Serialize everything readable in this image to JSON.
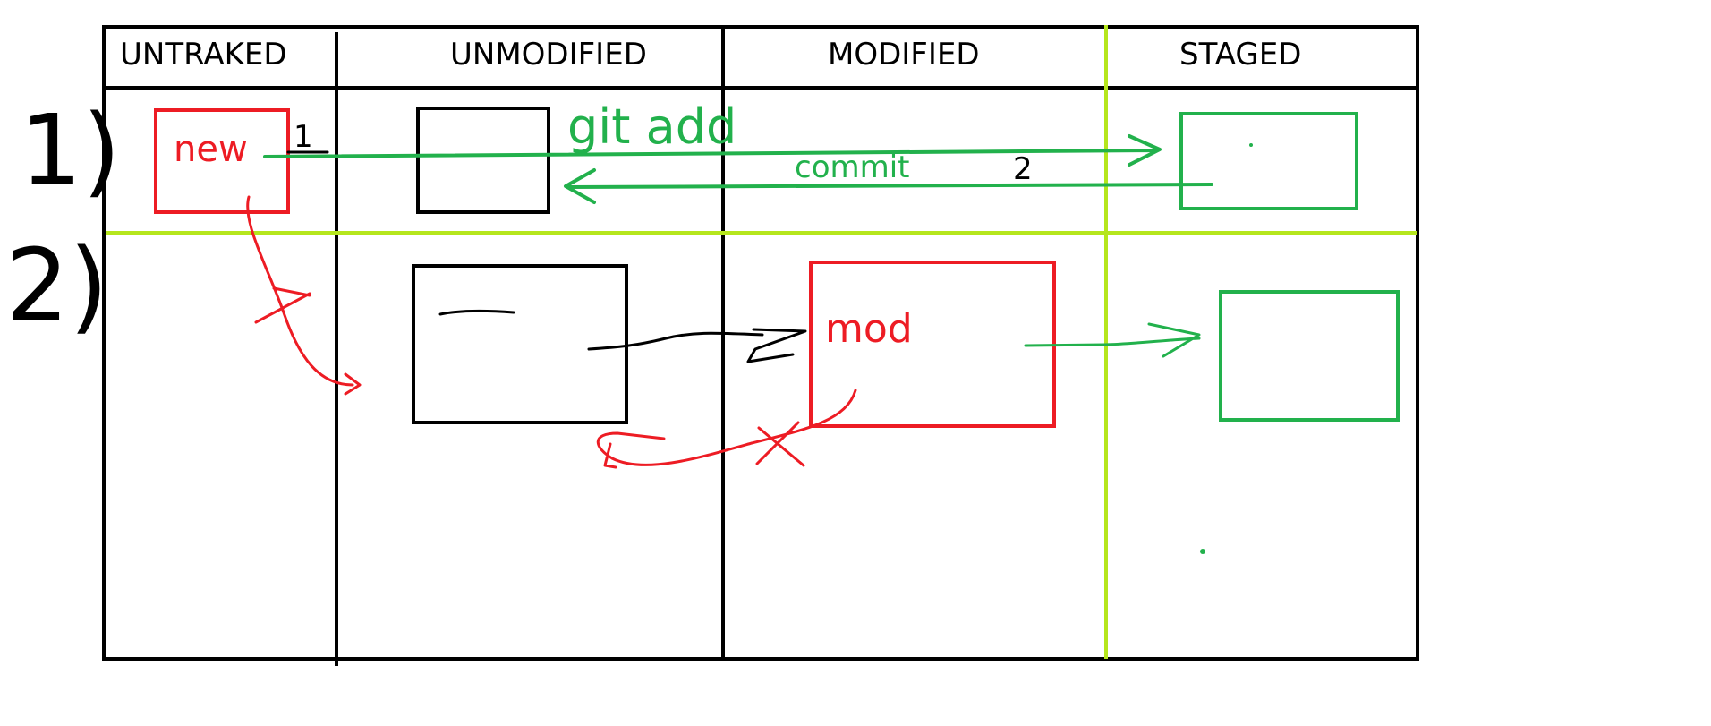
{
  "columns": {
    "untracked": "UNTRAKED",
    "unmodified": "UNMODIFIED",
    "modified": "MODIFIED",
    "staged": "STAGED"
  },
  "rows": {
    "first": "1)",
    "second": "2)"
  },
  "labels": {
    "new_file": "new",
    "git_add": "git add",
    "commit": "commit",
    "step_one": "1",
    "step_two": "2",
    "modified_file": "mod"
  },
  "colors": {
    "grid": "#000000",
    "divider": "#b5e61d",
    "red": "#ed1c24",
    "green": "#22b14c",
    "ink": "#000000"
  }
}
